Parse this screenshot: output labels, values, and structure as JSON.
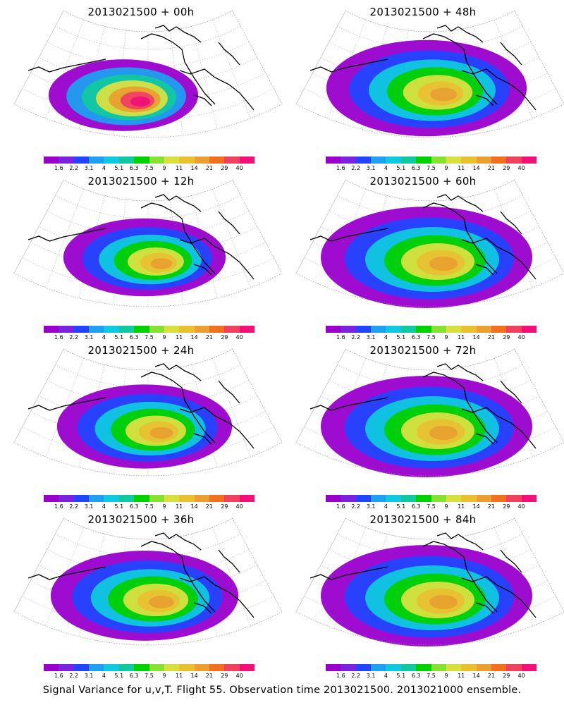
{
  "colorbar": {
    "colors": [
      "#9900cc",
      "#7a22dd",
      "#2244ff",
      "#1e9ff0",
      "#10c8e0",
      "#10c8a0",
      "#00d000",
      "#88e030",
      "#d8e040",
      "#e8c030",
      "#e8a030",
      "#f07020",
      "#f04060",
      "#f0107a"
    ],
    "labels": [
      "1.6",
      "2.2",
      "3.1",
      "4",
      "5.1",
      "6.3",
      "7.5",
      "9",
      "11",
      "14",
      "21",
      "29",
      "40"
    ]
  },
  "panels": [
    {
      "title": "2013021500 + 00h",
      "lead": 0
    },
    {
      "title": "2013021500 + 48h",
      "lead": 48
    },
    {
      "title": "2013021500 + 12h",
      "lead": 12
    },
    {
      "title": "2013021500 + 60h",
      "lead": 60
    },
    {
      "title": "2013021500 + 24h",
      "lead": 24
    },
    {
      "title": "2013021500 + 72h",
      "lead": 72
    },
    {
      "title": "2013021500 + 36h",
      "lead": 36
    },
    {
      "title": "2013021500 + 84h",
      "lead": 84
    }
  ],
  "footer": "Signal Variance for u,v,T. Flight 55. Observation time 2013021500. 2013021000 ensemble."
}
